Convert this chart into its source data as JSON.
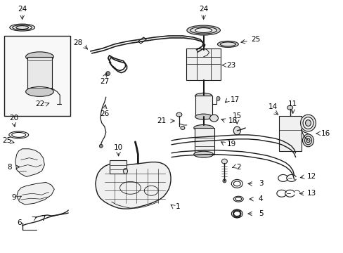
{
  "bg_color": "#ffffff",
  "line_color": "#1a1a1a",
  "label_color": "#000000",
  "label_fontsize": 7.5,
  "figsize": [
    4.89,
    3.6
  ],
  "dpi": 100
}
